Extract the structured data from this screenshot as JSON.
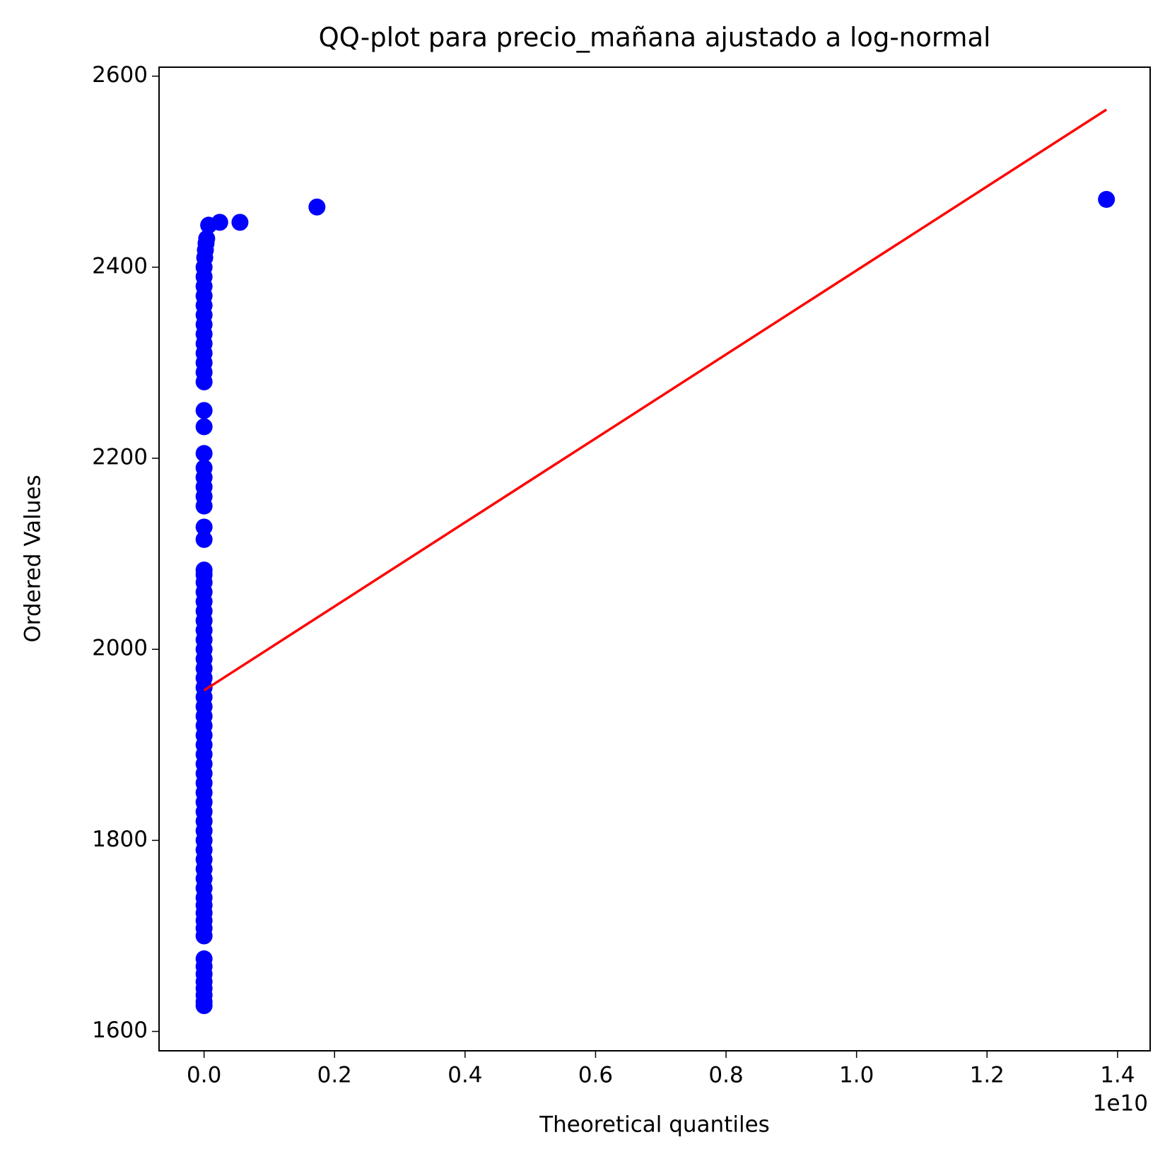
{
  "chart_data": {
    "type": "scatter",
    "title": "QQ-plot para precio_mañana ajustado a log-normal",
    "xlabel": "Theoretical quantiles",
    "ylabel": "Ordered Values",
    "x_offset_text": "1e10",
    "xlim": [
      -0.069,
      1.45
    ],
    "ylim": [
      1579.7,
      2609.4
    ],
    "xticks": [
      {
        "value": 0,
        "label": "0.0"
      },
      0.2,
      0.4,
      0.6,
      0.8,
      {
        "value": 1,
        "label": "1.0"
      },
      1.2,
      1.4
    ],
    "yticks": [
      1600,
      1800,
      2000,
      2200,
      2400,
      2600
    ],
    "grid": false,
    "series": [
      {
        "name": "Ordered Values",
        "kind": "points",
        "color": "#0000ff",
        "x": [
          0,
          0,
          0,
          0,
          0,
          0,
          0,
          0,
          0,
          0,
          0,
          0,
          0,
          0,
          0,
          0,
          0,
          0,
          0,
          0,
          0,
          0,
          0,
          0,
          0,
          0,
          0,
          0,
          0,
          0,
          0,
          0,
          0,
          0,
          0,
          0,
          0,
          0,
          0,
          0,
          0,
          0,
          0,
          0,
          0,
          0,
          0,
          0,
          0,
          0,
          0,
          0,
          0,
          0,
          0,
          0,
          0,
          0,
          0,
          0,
          0,
          0,
          0,
          0,
          0,
          0,
          0,
          0,
          0,
          0,
          0,
          0,
          0.001,
          0.002,
          0.003,
          0.004,
          0.007,
          0.024,
          0.055,
          0.173,
          1.383
        ],
        "y": [
          1627,
          1631,
          1638,
          1645,
          1652,
          1660,
          1668,
          1676,
          1700,
          1708,
          1716,
          1724,
          1732,
          1740,
          1750,
          1760,
          1770,
          1780,
          1790,
          1800,
          1810,
          1820,
          1830,
          1840,
          1850,
          1860,
          1870,
          1880,
          1890,
          1900,
          1910,
          1920,
          1930,
          1940,
          1950,
          1960,
          1970,
          1980,
          1990,
          2000,
          2010,
          2020,
          2030,
          2040,
          2050,
          2060,
          2070,
          2078,
          2083,
          2115,
          2128,
          2150,
          2160,
          2170,
          2180,
          2190,
          2205,
          2233,
          2250,
          2280,
          2290,
          2300,
          2310,
          2320,
          2330,
          2340,
          2350,
          2360,
          2370,
          2380,
          2390,
          2400,
          2410,
          2418,
          2425,
          2430,
          2444,
          2447,
          2447,
          2463,
          2471
        ]
      },
      {
        "name": "Fit",
        "kind": "line",
        "color": "#ff0000",
        "x": [
          0,
          1.383
        ],
        "y": [
          1957,
          2565
        ]
      }
    ]
  }
}
